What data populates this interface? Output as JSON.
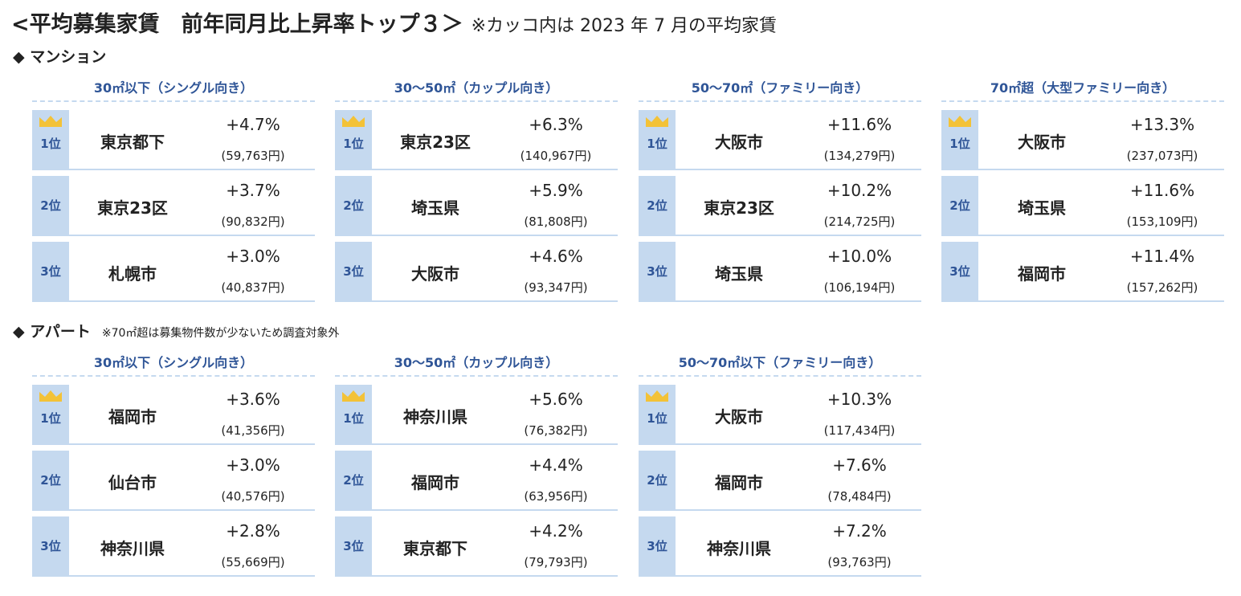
{
  "header": {
    "title": "<平均募集家賃　前年同月比上昇率トップ３＞",
    "note": "※カッコ内は 2023 年 7 月の平均家賃"
  },
  "sections": [
    {
      "heading": "◆ マンション",
      "groups": [
        {
          "title": "30㎡以下（シングル向き）",
          "rows": [
            {
              "rank": "1位",
              "city": "東京都下",
              "change": "+4.7%",
              "rent": "(59,763円)"
            },
            {
              "rank": "2位",
              "city": "東京23区",
              "change": "+3.7%",
              "rent": "(90,832円)"
            },
            {
              "rank": "3位",
              "city": "札幌市",
              "change": "+3.0%",
              "rent": "(40,837円)"
            }
          ]
        },
        {
          "title": "30～50㎡（カップル向き）",
          "rows": [
            {
              "rank": "1位",
              "city": "東京23区",
              "change": "+6.3%",
              "rent": "(140,967円)"
            },
            {
              "rank": "2位",
              "city": "埼玉県",
              "change": "+5.9%",
              "rent": "(81,808円)"
            },
            {
              "rank": "3位",
              "city": "大阪市",
              "change": "+4.6%",
              "rent": "(93,347円)"
            }
          ]
        },
        {
          "title": "50～70㎡（ファミリー向き）",
          "rows": [
            {
              "rank": "1位",
              "city": "大阪市",
              "change": "+11.6%",
              "rent": "(134,279円)"
            },
            {
              "rank": "2位",
              "city": "東京23区",
              "change": "+10.2%",
              "rent": "(214,725円)"
            },
            {
              "rank": "3位",
              "city": "埼玉県",
              "change": "+10.0%",
              "rent": "(106,194円)"
            }
          ]
        },
        {
          "title": "70㎡超（大型ファミリー向き）",
          "rows": [
            {
              "rank": "1位",
              "city": "大阪市",
              "change": "+13.3%",
              "rent": "(237,073円)"
            },
            {
              "rank": "2位",
              "city": "埼玉県",
              "change": "+11.6%",
              "rent": "(153,109円)"
            },
            {
              "rank": "3位",
              "city": "福岡市",
              "change": "+11.4%",
              "rent": "(157,262円)"
            }
          ]
        }
      ]
    },
    {
      "heading": "◆ アパート",
      "note": "※70㎡超は募集物件数が少ないため調査対象外",
      "groups": [
        {
          "title": "30㎡以下（シングル向き）",
          "rows": [
            {
              "rank": "1位",
              "city": "福岡市",
              "change": "+3.6%",
              "rent": "(41,356円)"
            },
            {
              "rank": "2位",
              "city": "仙台市",
              "change": "+3.0%",
              "rent": "(40,576円)"
            },
            {
              "rank": "3位",
              "city": "神奈川県",
              "change": "+2.8%",
              "rent": "(55,669円)"
            }
          ]
        },
        {
          "title": "30～50㎡（カップル向き）",
          "rows": [
            {
              "rank": "1位",
              "city": "神奈川県",
              "change": "+5.6%",
              "rent": "(76,382円)"
            },
            {
              "rank": "2位",
              "city": "福岡市",
              "change": "+4.4%",
              "rent": "(63,956円)"
            },
            {
              "rank": "3位",
              "city": "東京都下",
              "change": "+4.2%",
              "rent": "(79,793円)"
            }
          ]
        },
        {
          "title": "50～70㎡以下（ファミリー向き）",
          "rows": [
            {
              "rank": "1位",
              "city": "大阪市",
              "change": "+10.3%",
              "rent": "(117,434円)"
            },
            {
              "rank": "2位",
              "city": "福岡市",
              "change": "+7.6%",
              "rent": "(78,484円)"
            },
            {
              "rank": "3位",
              "city": "神奈川県",
              "change": "+7.2%",
              "rent": "(93,763円)"
            }
          ]
        }
      ]
    }
  ]
}
